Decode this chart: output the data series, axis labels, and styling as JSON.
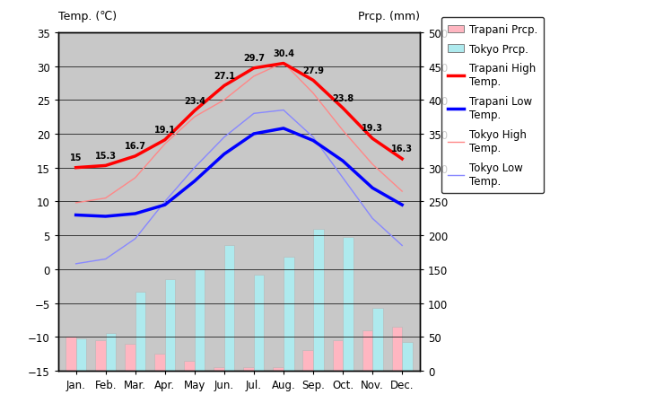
{
  "months": [
    "Jan.",
    "Feb.",
    "Mar.",
    "Apr.",
    "May",
    "Jun.",
    "Jul.",
    "Aug.",
    "Sep.",
    "Oct.",
    "Nov.",
    "Dec."
  ],
  "trapani_high": [
    15,
    15.3,
    16.7,
    19.1,
    23.4,
    27.1,
    29.7,
    30.4,
    27.9,
    23.8,
    19.3,
    16.3
  ],
  "trapani_low": [
    8.0,
    7.8,
    8.2,
    9.5,
    13.0,
    17.0,
    20.0,
    20.8,
    19.0,
    16.0,
    12.0,
    9.5
  ],
  "tokyo_high": [
    9.8,
    10.5,
    13.5,
    18.5,
    22.5,
    25.0,
    28.5,
    30.5,
    26.0,
    20.5,
    15.5,
    11.5
  ],
  "tokyo_low": [
    0.8,
    1.5,
    4.5,
    10.0,
    15.0,
    19.5,
    23.0,
    23.5,
    19.5,
    13.5,
    7.5,
    3.5
  ],
  "trapani_prcp_mm": [
    50,
    45,
    40,
    25,
    15,
    5,
    5,
    5,
    30,
    45,
    60,
    65
  ],
  "tokyo_prcp_mm": [
    48,
    56,
    117,
    135,
    150,
    185,
    142,
    168,
    210,
    198,
    93,
    42
  ],
  "trapani_prcp_color": "#FFB6C1",
  "tokyo_prcp_color": "#AEEAEE",
  "bg_color": "#C8C8C8",
  "ylim_temp": [
    -15,
    35
  ],
  "ylim_prcp": [
    0,
    500
  ],
  "temp_ticks": [
    -15,
    -10,
    -5,
    0,
    5,
    10,
    15,
    20,
    25,
    30,
    35
  ],
  "prcp_ticks": [
    0,
    50,
    100,
    150,
    200,
    250,
    300,
    350,
    400,
    450,
    500
  ],
  "ylabel_left": "Temp. (℃)",
  "ylabel_right": "Prcp. (mm)"
}
